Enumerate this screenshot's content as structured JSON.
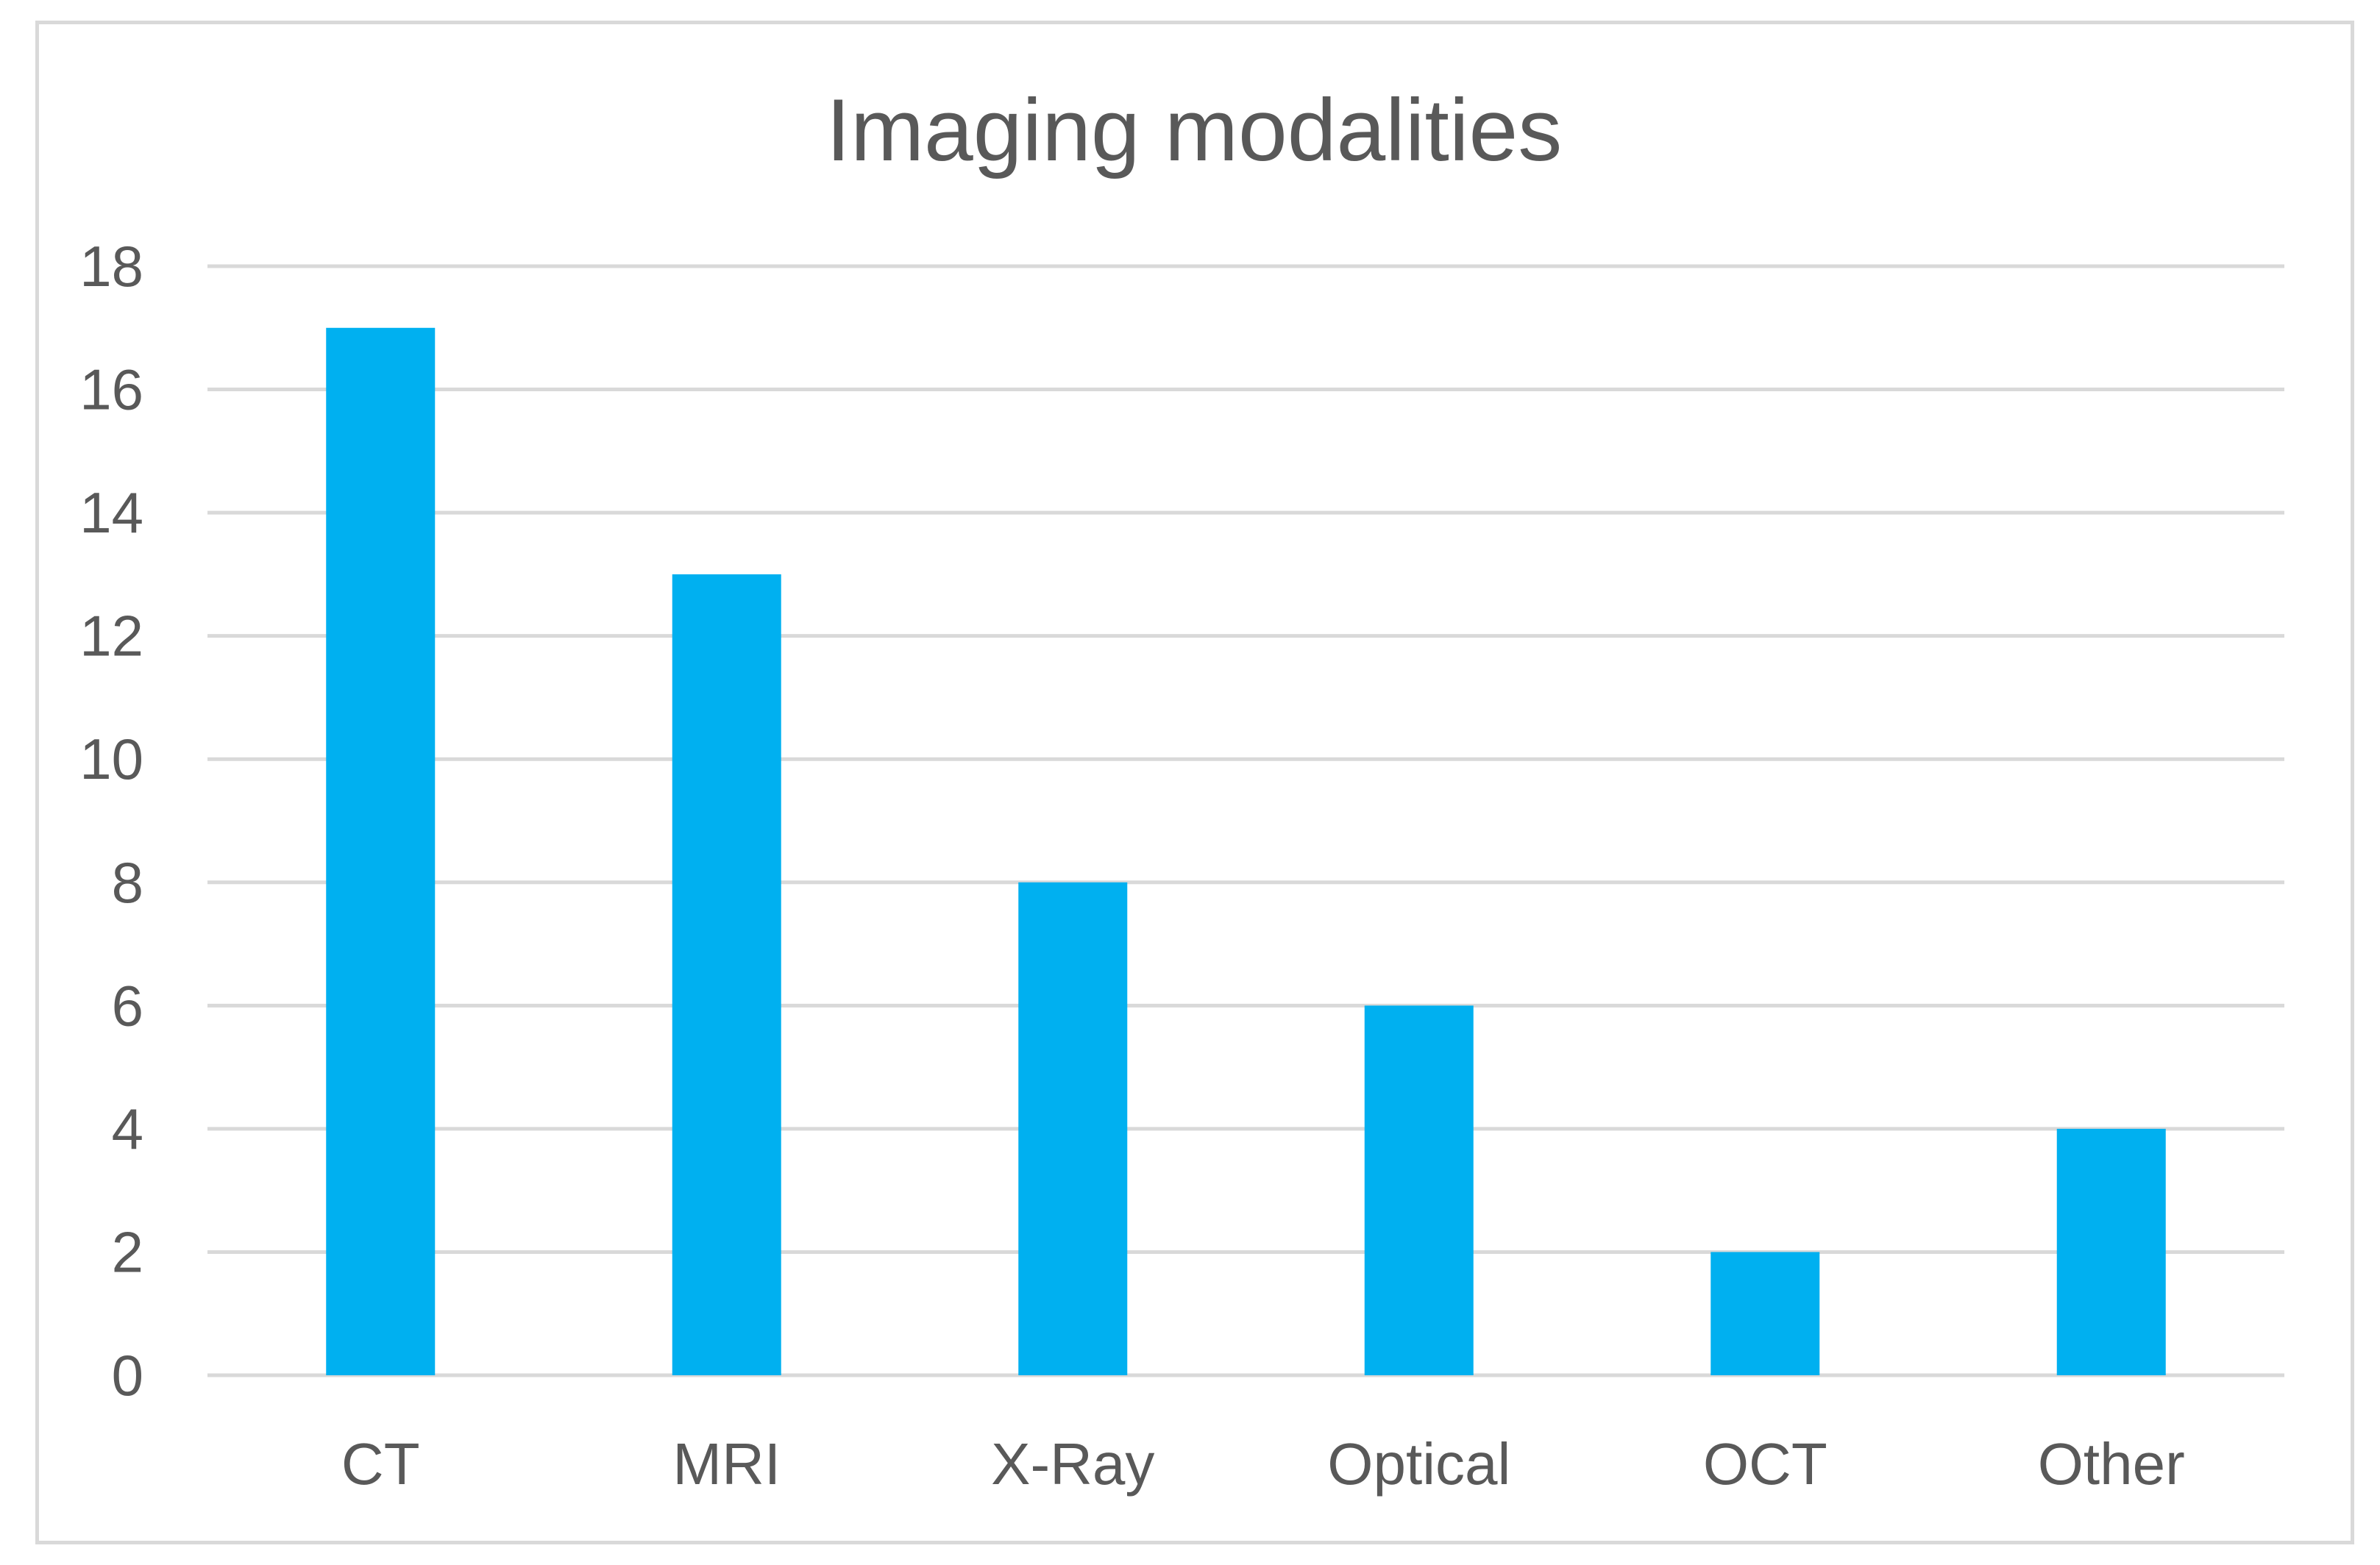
{
  "chart_data": {
    "type": "bar",
    "title": "Imaging modalities",
    "xlabel": "",
    "ylabel": "",
    "categories": [
      "CT",
      "MRI",
      "X-Ray",
      "Optical",
      "OCT",
      "Other"
    ],
    "values": [
      17,
      13,
      8,
      6,
      2,
      4
    ],
    "ylim": [
      0,
      18
    ],
    "yticks": [
      "0",
      "2",
      "4",
      "6",
      "8",
      "10",
      "12",
      "14",
      "16",
      "18"
    ],
    "grid": true,
    "legend": "none",
    "colors": {
      "bar": "#00B0F0",
      "grid": "#d9d9d9",
      "text": "#595959"
    }
  }
}
